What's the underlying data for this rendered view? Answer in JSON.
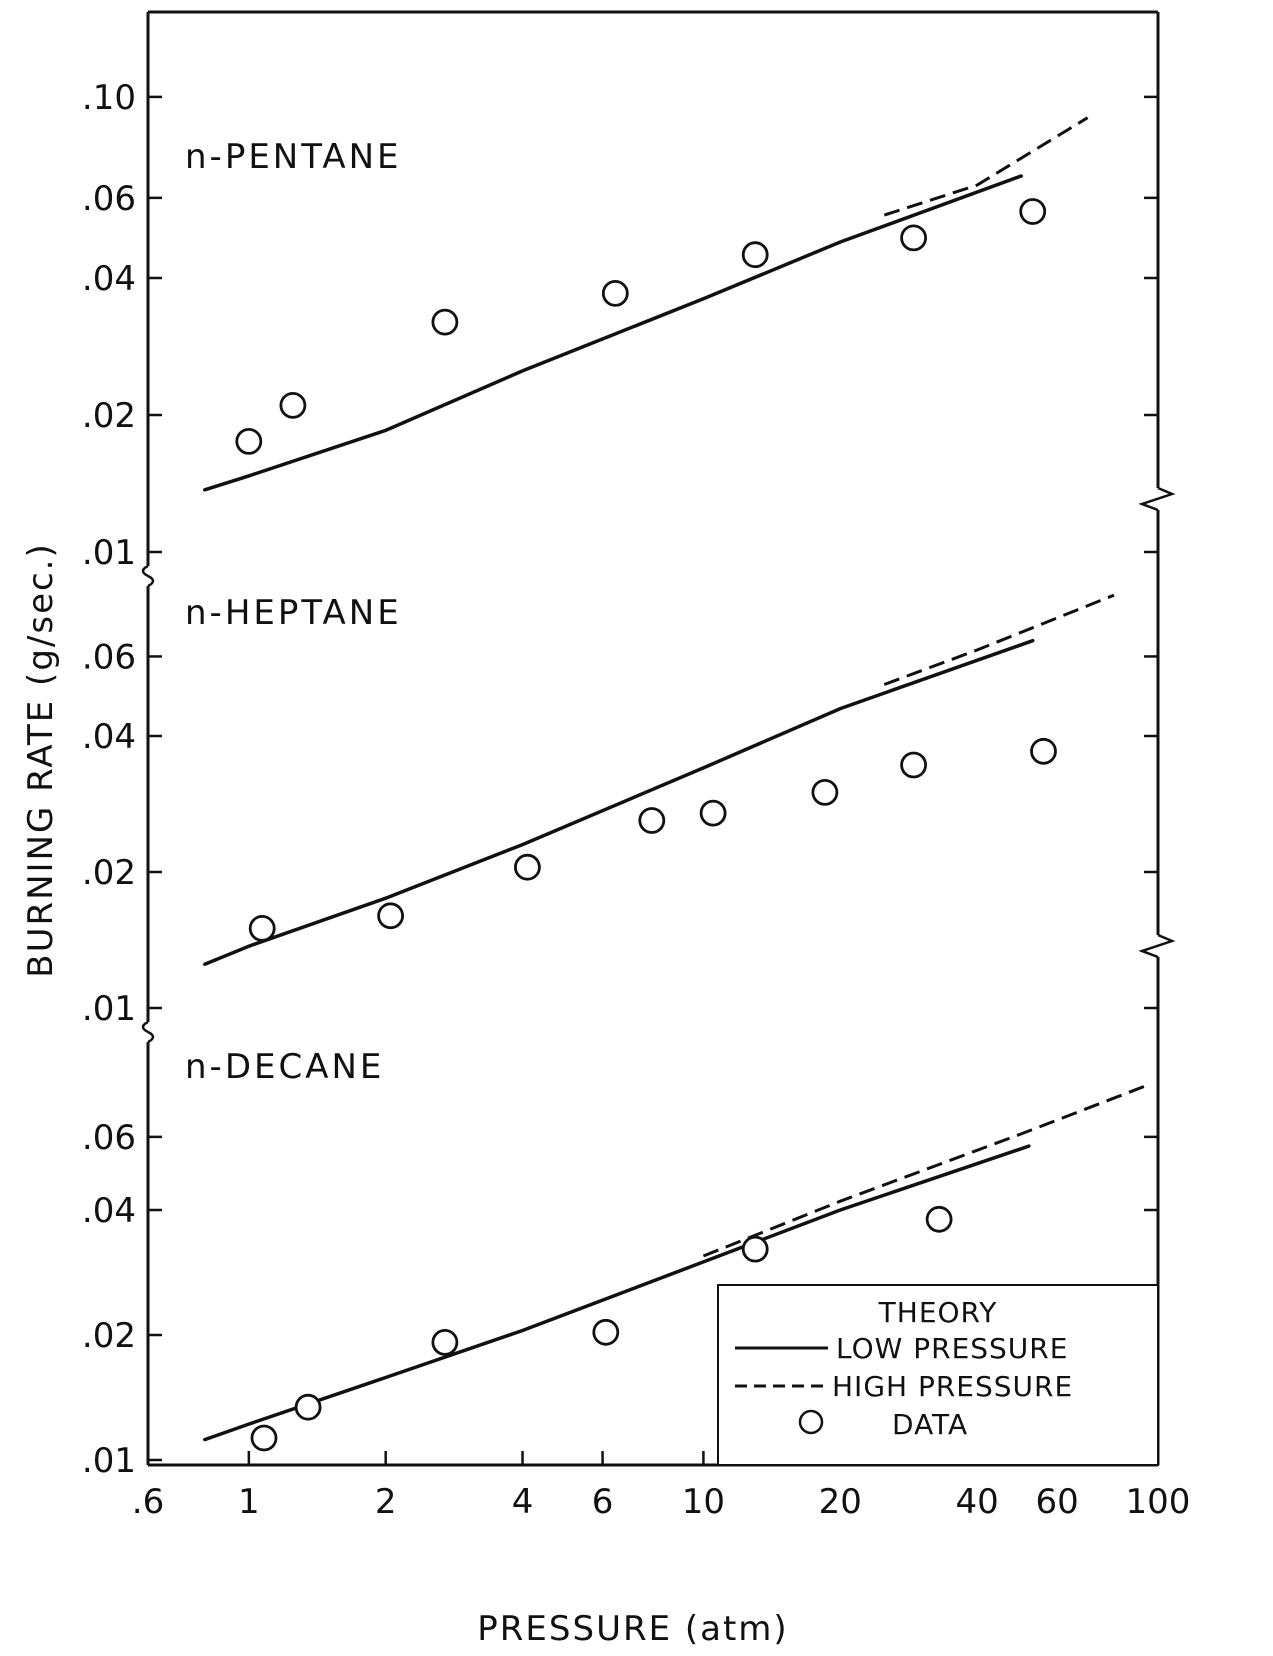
{
  "chart_data": {
    "type": "scatter",
    "xlabel": "PRESSURE (atm)",
    "ylabel": "BURNING RATE (g/sec.)",
    "xscale": "log",
    "yscale": "log",
    "xlim": [
      0.6,
      100
    ],
    "x_ticks": [
      {
        "value": 0.6,
        "label": ".6"
      },
      {
        "value": 1,
        "label": "1"
      },
      {
        "value": 2,
        "label": "2"
      },
      {
        "value": 4,
        "label": "4"
      },
      {
        "value": 6,
        "label": "6"
      },
      {
        "value": 10,
        "label": "10"
      },
      {
        "value": 20,
        "label": "20"
      },
      {
        "value": 40,
        "label": "40"
      },
      {
        "value": 60,
        "label": "60"
      },
      {
        "value": 100,
        "label": "100"
      }
    ],
    "y_tick_labels": [
      ".01",
      ".02",
      ".04",
      ".06",
      ".10"
    ],
    "grid": false,
    "legend": {
      "placement": "bottom-right",
      "title": "THEORY",
      "entries": [
        {
          "style": "solid",
          "label": "LOW PRESSURE"
        },
        {
          "style": "dashed",
          "label": "HIGH PRESSURE"
        },
        {
          "style": "circle",
          "label": "DATA"
        }
      ]
    },
    "panels": [
      {
        "name": "n-PENTANE",
        "ylim": [
          0.01,
          0.12
        ],
        "y_ticks": [
          {
            "value": 0.01,
            "label": ".01"
          },
          {
            "value": 0.02,
            "label": ".02"
          },
          {
            "value": 0.04,
            "label": ".04"
          },
          {
            "value": 0.06,
            "label": ".06"
          },
          {
            "value": 0.1,
            "label": ".10"
          }
        ],
        "low_pressure": [
          [
            0.8,
            0.0137
          ],
          [
            1,
            0.0147
          ],
          [
            2,
            0.0185
          ],
          [
            4,
            0.025
          ],
          [
            10,
            0.036
          ],
          [
            20,
            0.048
          ],
          [
            50,
            0.067
          ]
        ],
        "high_pressure": [
          [
            25,
            0.055
          ],
          [
            40,
            0.064
          ],
          [
            70,
            0.09
          ]
        ],
        "data": [
          [
            1.0,
            0.0175
          ],
          [
            1.25,
            0.021
          ],
          [
            2.7,
            0.032
          ],
          [
            6.4,
            0.037
          ],
          [
            13,
            0.045
          ],
          [
            29,
            0.049
          ],
          [
            53,
            0.056
          ]
        ]
      },
      {
        "name": "n-HEPTANE",
        "ylim": [
          0.01,
          0.09
        ],
        "y_ticks": [
          {
            "value": 0.01,
            "label": ".01"
          },
          {
            "value": 0.02,
            "label": ".02"
          },
          {
            "value": 0.04,
            "label": ".04"
          },
          {
            "value": 0.06,
            "label": ".06"
          }
        ],
        "low_pressure": [
          [
            0.8,
            0.0125
          ],
          [
            1,
            0.0137
          ],
          [
            2,
            0.0175
          ],
          [
            4,
            0.023
          ],
          [
            10,
            0.034
          ],
          [
            20,
            0.046
          ],
          [
            53,
            0.065
          ]
        ],
        "high_pressure": [
          [
            25,
            0.052
          ],
          [
            40,
            0.062
          ],
          [
            80,
            0.082
          ]
        ],
        "data": [
          [
            1.07,
            0.015
          ],
          [
            2.05,
            0.016
          ],
          [
            4.1,
            0.0205
          ],
          [
            7.7,
            0.026
          ],
          [
            10.5,
            0.027
          ],
          [
            18.5,
            0.03
          ],
          [
            29,
            0.0345
          ],
          [
            56,
            0.037
          ]
        ]
      },
      {
        "name": "n-DECANE",
        "ylim": [
          0.01,
          0.09
        ],
        "y_ticks": [
          {
            "value": 0.01,
            "label": ".01"
          },
          {
            "value": 0.02,
            "label": ".02"
          },
          {
            "value": 0.04,
            "label": ".04"
          },
          {
            "value": 0.06,
            "label": ".06"
          }
        ],
        "low_pressure": [
          [
            0.8,
            0.0112
          ],
          [
            1,
            0.0122
          ],
          [
            2,
            0.0158
          ],
          [
            4,
            0.0205
          ],
          [
            10,
            0.03
          ],
          [
            20,
            0.04
          ],
          [
            52,
            0.057
          ]
        ],
        "high_pressure": [
          [
            10,
            0.031
          ],
          [
            20,
            0.042
          ],
          [
            50,
            0.061
          ],
          [
            95,
            0.08
          ]
        ],
        "data": [
          [
            1.08,
            0.0113
          ],
          [
            1.35,
            0.0134
          ],
          [
            2.7,
            0.0192
          ],
          [
            6.1,
            0.0203
          ],
          [
            13,
            0.0322
          ],
          [
            33,
            0.038
          ]
        ]
      }
    ]
  }
}
